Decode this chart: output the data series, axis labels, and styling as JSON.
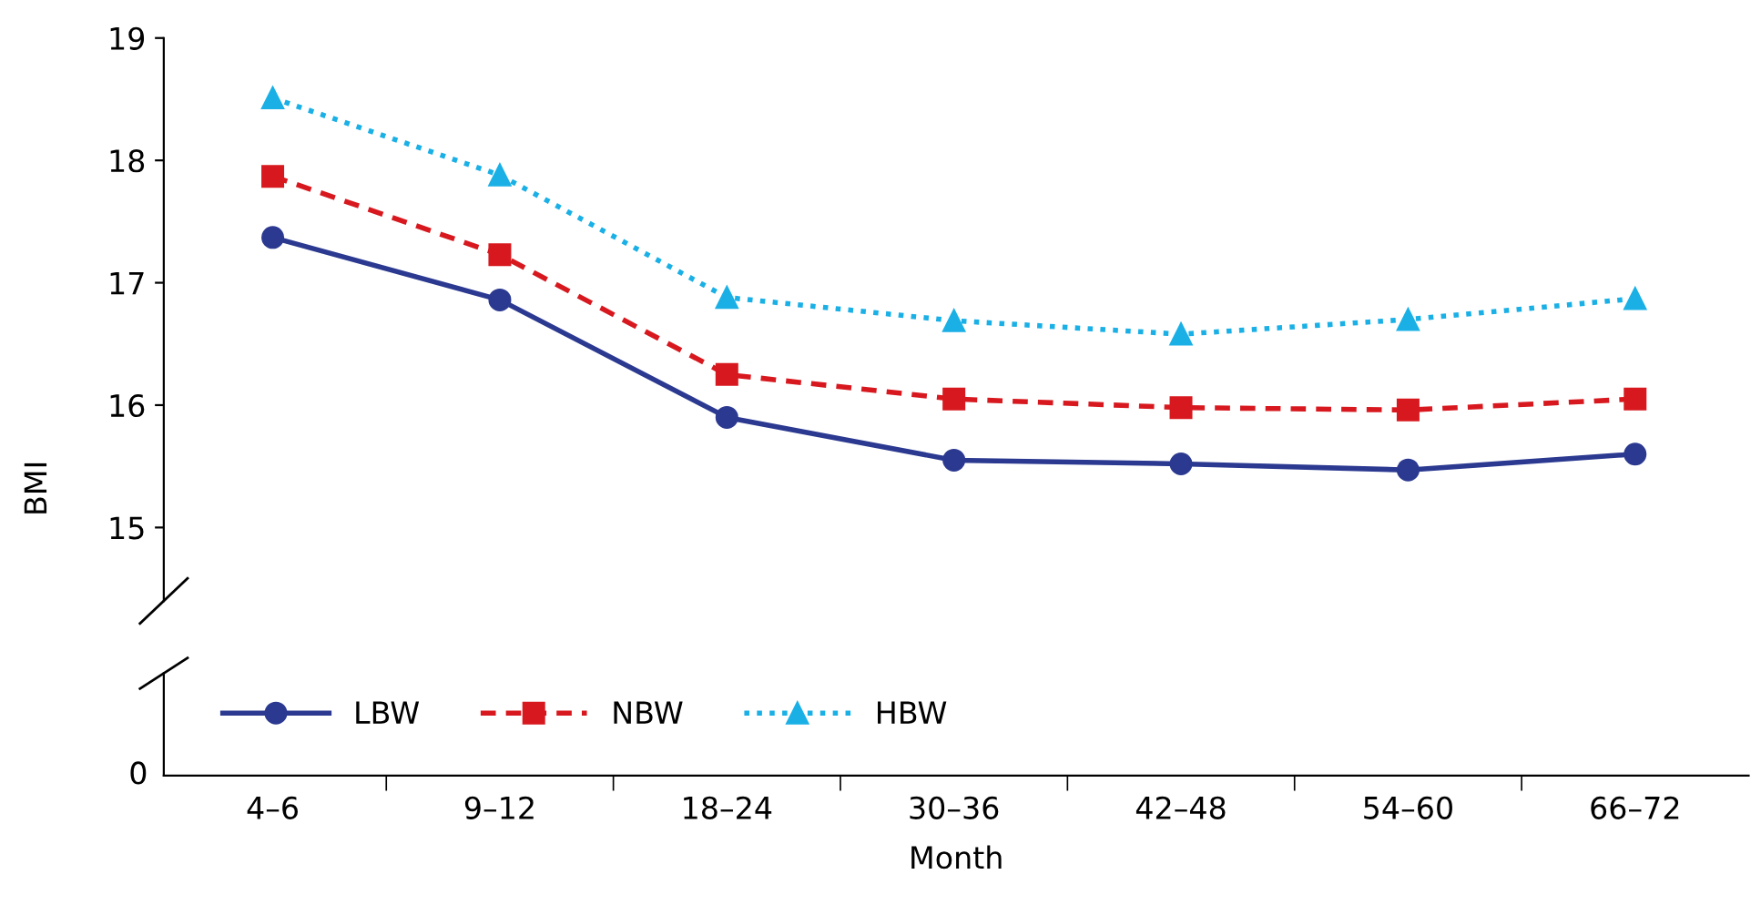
{
  "chart_data": {
    "type": "line",
    "xlabel": "Month",
    "ylabel": "BMI",
    "categories": [
      "4–6",
      "9–12",
      "18–24",
      "30–36",
      "42–48",
      "54–60",
      "66–72"
    ],
    "ylim": [
      14.4,
      19
    ],
    "yticks": [
      15,
      16,
      17,
      18,
      19
    ],
    "grid": false,
    "legend": "bottom left",
    "annotations": [
      "0"
    ],
    "series": [
      {
        "name": "LBW",
        "color": "#2b3990",
        "marker": "circle",
        "line_style": "solid",
        "values": [
          17.37,
          16.86,
          15.9,
          15.55,
          15.52,
          15.47,
          15.6
        ]
      },
      {
        "name": "NBW",
        "color": "#d7191f",
        "marker": "square",
        "line_style": "dashed",
        "values": [
          17.87,
          17.23,
          16.25,
          16.05,
          15.98,
          15.96,
          16.05
        ]
      },
      {
        "name": "HBW",
        "color": "#1ab0e6",
        "marker": "triangle",
        "line_style": "dotted",
        "values": [
          18.51,
          17.88,
          16.88,
          16.69,
          16.58,
          16.7,
          16.87
        ]
      }
    ]
  }
}
